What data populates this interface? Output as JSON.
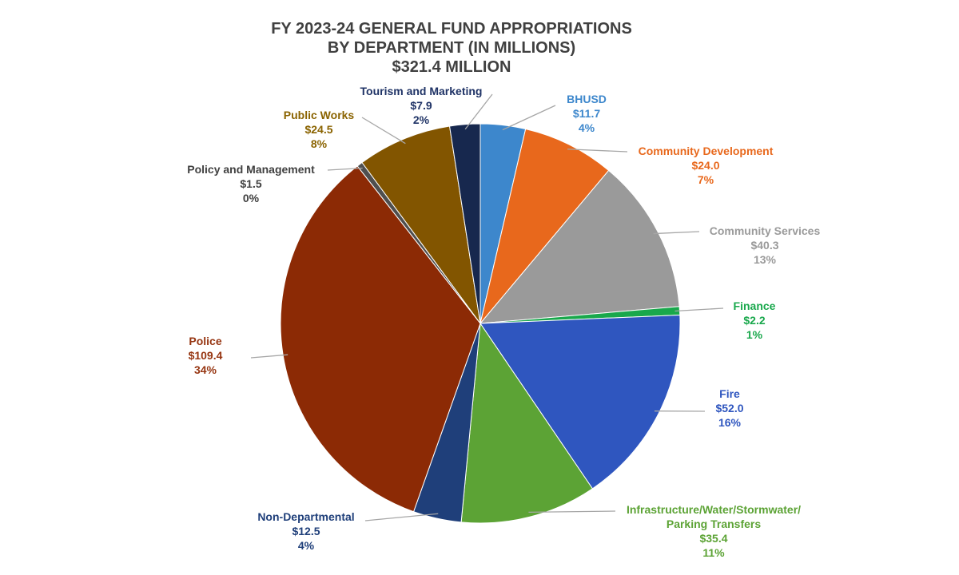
{
  "chart_data": {
    "type": "pie",
    "title_lines": [
      "FY 2023-24 GENERAL FUND APPROPRIATIONS",
      "BY DEPARTMENT (IN MILLIONS)",
      "$321.4 MILLION"
    ],
    "total": 321.4,
    "start_angle_deg": 0,
    "direction": "clockwise",
    "slices": [
      {
        "name": "BHUSD",
        "label_lines": [
          "BHUSD"
        ],
        "value": 11.7,
        "value_label": "$11.7",
        "percent_label": "4%",
        "color": "#3d87cc",
        "label_color": "#3d87cc"
      },
      {
        "name": "Community Development",
        "label_lines": [
          "Community Development"
        ],
        "value": 24.0,
        "value_label": "$24.0",
        "percent_label": "7%",
        "color": "#e8681c",
        "label_color": "#e8681c"
      },
      {
        "name": "Community Services",
        "label_lines": [
          "Community Services"
        ],
        "value": 40.3,
        "value_label": "$40.3",
        "percent_label": "13%",
        "color": "#9a9a9a",
        "label_color": "#9a9a9a"
      },
      {
        "name": "Finance",
        "label_lines": [
          "Finance"
        ],
        "value": 2.2,
        "value_label": "$2.2",
        "percent_label": "1%",
        "color": "#19a84c",
        "label_color": "#19a84c"
      },
      {
        "name": "Fire",
        "label_lines": [
          "Fire"
        ],
        "value": 52.0,
        "value_label": "$52.0",
        "percent_label": "16%",
        "color": "#2f56bf",
        "label_color": "#2f56bf"
      },
      {
        "name": "Infrastructure/Water/Stormwater/Parking Transfers",
        "label_lines": [
          "Infrastructure/Water/Stormwater/",
          "Parking Transfers"
        ],
        "value": 35.4,
        "value_label": "$35.4",
        "percent_label": "11%",
        "color": "#5ca335",
        "label_color": "#5ca335"
      },
      {
        "name": "Non-Departmental",
        "label_lines": [
          "Non-Departmental"
        ],
        "value": 12.5,
        "value_label": "$12.5",
        "percent_label": "4%",
        "color": "#1f3f7a",
        "label_color": "#1f3f7a"
      },
      {
        "name": "Police",
        "label_lines": [
          "Police"
        ],
        "value": 109.4,
        "value_label": "$109.4",
        "percent_label": "34%",
        "color": "#8c2a05",
        "label_color": "#963511"
      },
      {
        "name": "Policy and Management",
        "label_lines": [
          "Policy and Management"
        ],
        "value": 1.5,
        "value_label": "$1.5",
        "percent_label": "0%",
        "color": "#4f4f4f",
        "label_color": "#404040"
      },
      {
        "name": "Public Works",
        "label_lines": [
          "Public Works"
        ],
        "value": 24.5,
        "value_label": "$24.5",
        "percent_label": "8%",
        "color": "#825500",
        "label_color": "#8a6300"
      },
      {
        "name": "Tourism and Marketing",
        "label_lines": [
          "Tourism and Marketing"
        ],
        "value": 7.9,
        "value_label": "$7.9",
        "percent_label": "2%",
        "color": "#17284e",
        "label_color": "#1f3366"
      }
    ],
    "legend": "none"
  }
}
